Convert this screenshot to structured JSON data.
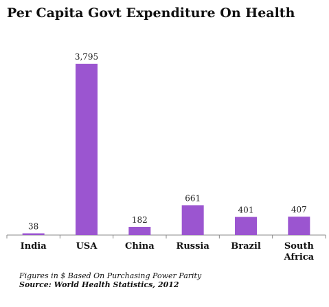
{
  "title": "Per Capita Govt Expenditure On Health",
  "chart_data": {
    "type": "bar",
    "title": "Per Capita Govt Expenditure On Health",
    "categories": [
      [
        "India"
      ],
      [
        "USA"
      ],
      [
        "China"
      ],
      [
        "Russia"
      ],
      [
        "Brazil"
      ],
      [
        "South",
        "Africa"
      ]
    ],
    "values": [
      38,
      3795,
      182,
      661,
      401,
      407
    ],
    "value_labels": [
      "38",
      "3,795",
      "182",
      "661",
      "401",
      "407"
    ],
    "ylim": [
      0,
      3795
    ],
    "bar_color": "#9b55d0",
    "grid": false,
    "legend": "none"
  },
  "footnote": "Figures in $ Based On Purchasing Power Parity",
  "source": "Source: World Health Statistics,  2012"
}
